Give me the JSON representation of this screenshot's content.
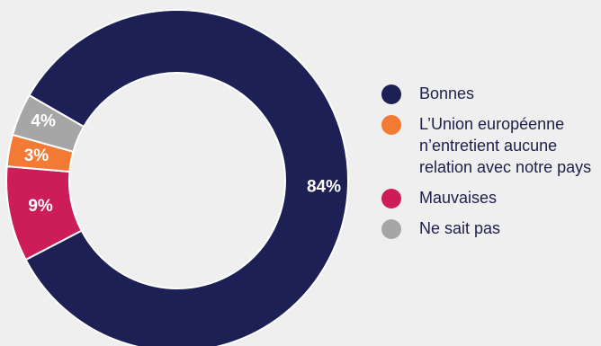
{
  "chart_data": {
    "type": "pie",
    "variant": "donut",
    "title": "",
    "slices": [
      {
        "label": "Bonnes",
        "value": 84,
        "display": "84%",
        "color": "#1d2055"
      },
      {
        "label": "Mauvaises",
        "value": 9,
        "display": "9%",
        "color": "#cd1d59"
      },
      {
        "label": "L’Union européenne n’entretient aucune relation avec notre pays",
        "value": 3,
        "display": "3%",
        "color": "#f37a35"
      },
      {
        "label": "Ne sait pas",
        "value": 4,
        "display": "4%",
        "color": "#a6a6a6"
      }
    ],
    "legend": {
      "position": "right",
      "entries": [
        {
          "label": "Bonnes",
          "color": "#1d2055"
        },
        {
          "label": "L’Union européenne n’entretient aucune relation avec notre pays",
          "color": "#f37a35"
        },
        {
          "label": "Mauvaises",
          "color": "#cd1d59"
        },
        {
          "label": "Ne sait pas",
          "color": "#a6a6a6"
        }
      ]
    }
  }
}
